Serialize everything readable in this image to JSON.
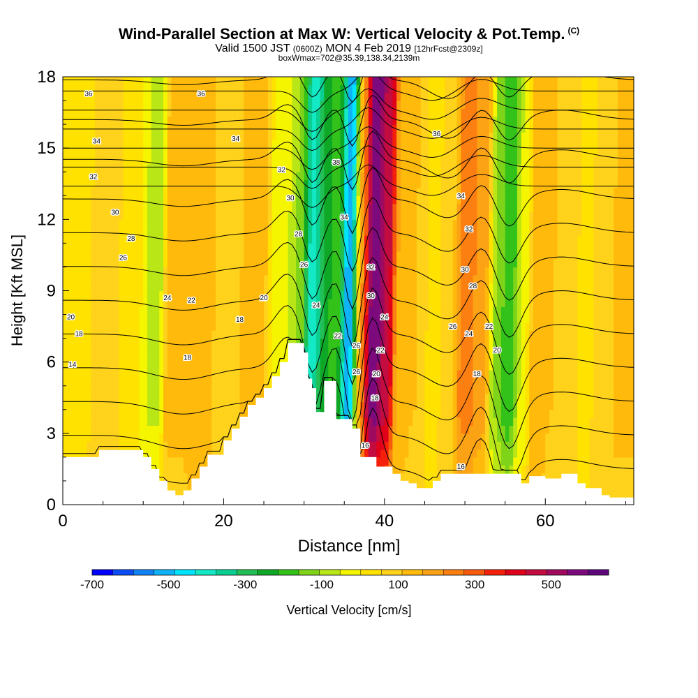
{
  "title": {
    "main": "Wind-Parallel Section at Max W: Vertical Velocity & Pot.Temp.",
    "copyright": "(C)",
    "valid_a": "Valid 1500 JST",
    "valid_zone": "(0600Z)",
    "valid_b": "MON 4 Feb 2019",
    "forecast": "[12hrFcst@2309z]",
    "boxinfo": "boxWmax=702@35.39,138.34,2139m"
  },
  "colors": {
    "bins": [
      "#0000ff",
      "#0b4cf4",
      "#0f82f4",
      "#0fb2f7",
      "#00e5ff",
      "#13e9c5",
      "#0bcf91",
      "#21bf55",
      "#0ea826",
      "#33c219",
      "#7fd419",
      "#b8e616",
      "#f5f500",
      "#ffe200",
      "#ffd21b",
      "#ffba0c",
      "#fca215",
      "#fc7f11",
      "#f75a0c",
      "#f4200c",
      "#e0001a",
      "#c30c40",
      "#a00a5e",
      "#7d0a7d",
      "#5d087a"
    ],
    "terrain": "#ffffff",
    "contour": "#000000"
  },
  "chart_data": {
    "type": "heatmap",
    "xlabel": "Distance [nm]",
    "ylabel": "Height [Kft MSL]",
    "xlim": [
      0,
      71
    ],
    "ylim": [
      0,
      18
    ],
    "xticks": [
      0,
      20,
      40,
      60
    ],
    "yticks": [
      0,
      3,
      6,
      9,
      12,
      15,
      18
    ],
    "colorbar": {
      "label": "Vertical Velocity [cm/s]",
      "min": -700,
      "max": 650,
      "step": 50,
      "tick_values": [
        -700,
        -500,
        -300,
        -100,
        100,
        300,
        500
      ]
    },
    "vertical_velocity_features": [
      {
        "x": 2,
        "w": -15
      },
      {
        "x": 5,
        "w": 30
      },
      {
        "x": 9,
        "w": -40
      },
      {
        "x": 11,
        "w": -110
      },
      {
        "x": 14,
        "w": 70
      },
      {
        "x": 17,
        "w": 90
      },
      {
        "x": 20,
        "w": 40
      },
      {
        "x": 24,
        "w": 55
      },
      {
        "x": 27,
        "w": -60
      },
      {
        "x": 29,
        "w": -150
      },
      {
        "x": 31,
        "w": -420
      },
      {
        "x": 32.5,
        "w": -280
      },
      {
        "x": 34,
        "w": -200
      },
      {
        "x": 35.5,
        "w": -600
      },
      {
        "x": 37,
        "w": 150
      },
      {
        "x": 38.5,
        "w": 520
      },
      {
        "x": 40,
        "w": 380
      },
      {
        "x": 42,
        "w": 80
      },
      {
        "x": 44,
        "w": 50
      },
      {
        "x": 46,
        "w": -20
      },
      {
        "x": 48,
        "w": 40
      },
      {
        "x": 50,
        "w": 180
      },
      {
        "x": 52,
        "w": 130
      },
      {
        "x": 54,
        "w": -160
      },
      {
        "x": 55.5,
        "w": -260
      },
      {
        "x": 57,
        "w": -80
      },
      {
        "x": 59,
        "w": 100
      },
      {
        "x": 61,
        "w": 50
      },
      {
        "x": 63,
        "w": 20
      },
      {
        "x": 65,
        "w": -20
      },
      {
        "x": 67,
        "w": 40
      },
      {
        "x": 70,
        "w": 70
      }
    ],
    "potential_temperature_contours": {
      "unit": "C",
      "levels": [
        14,
        16,
        18,
        20,
        22,
        24,
        26,
        28,
        30,
        32,
        34,
        36
      ],
      "labels": [
        {
          "text": "36",
          "x": 3.2,
          "y": 17.3
        },
        {
          "text": "36",
          "x": 17.2,
          "y": 17.3
        },
        {
          "text": "34",
          "x": 4.2,
          "y": 15.3
        },
        {
          "text": "34",
          "x": 21.5,
          "y": 15.4
        },
        {
          "text": "32",
          "x": 3.8,
          "y": 13.8
        },
        {
          "text": "32",
          "x": 27.2,
          "y": 14.1
        },
        {
          "text": "30",
          "x": 6.5,
          "y": 12.3
        },
        {
          "text": "30",
          "x": 28.3,
          "y": 12.9
        },
        {
          "text": "28",
          "x": 8.5,
          "y": 11.2
        },
        {
          "text": "28",
          "x": 29.3,
          "y": 11.4
        },
        {
          "text": "26",
          "x": 7.5,
          "y": 10.4
        },
        {
          "text": "26",
          "x": 30.0,
          "y": 10.1
        },
        {
          "text": "24",
          "x": 13.0,
          "y": 8.7
        },
        {
          "text": "24",
          "x": 31.5,
          "y": 8.4
        },
        {
          "text": "22",
          "x": 16.0,
          "y": 8.6
        },
        {
          "text": "22",
          "x": 34.2,
          "y": 7.1
        },
        {
          "text": "20",
          "x": 25.0,
          "y": 8.7
        },
        {
          "text": "20",
          "x": 1.0,
          "y": 7.9
        },
        {
          "text": "18",
          "x": 22.0,
          "y": 7.8
        },
        {
          "text": "18",
          "x": 2.0,
          "y": 7.2
        },
        {
          "text": "18",
          "x": 15.5,
          "y": 6.2
        },
        {
          "text": "14",
          "x": 1.2,
          "y": 5.9
        },
        {
          "text": "38",
          "x": 34.0,
          "y": 14.4
        },
        {
          "text": "34",
          "x": 35.0,
          "y": 12.1
        },
        {
          "text": "32",
          "x": 38.3,
          "y": 10.0
        },
        {
          "text": "30",
          "x": 38.3,
          "y": 8.8
        },
        {
          "text": "24",
          "x": 40.0,
          "y": 7.9
        },
        {
          "text": "26",
          "x": 36.5,
          "y": 6.7
        },
        {
          "text": "22",
          "x": 39.5,
          "y": 6.5
        },
        {
          "text": "26",
          "x": 36.5,
          "y": 5.6
        },
        {
          "text": "20",
          "x": 39.0,
          "y": 5.5
        },
        {
          "text": "18",
          "x": 38.8,
          "y": 4.5
        },
        {
          "text": "16",
          "x": 37.6,
          "y": 2.5
        },
        {
          "text": "36",
          "x": 46.5,
          "y": 15.6
        },
        {
          "text": "34",
          "x": 49.5,
          "y": 13.0
        },
        {
          "text": "32",
          "x": 50.5,
          "y": 11.6
        },
        {
          "text": "30",
          "x": 50.0,
          "y": 9.9
        },
        {
          "text": "28",
          "x": 51.0,
          "y": 9.2
        },
        {
          "text": "26",
          "x": 48.5,
          "y": 7.5
        },
        {
          "text": "24",
          "x": 50.5,
          "y": 7.2
        },
        {
          "text": "22",
          "x": 53.0,
          "y": 7.5
        },
        {
          "text": "20",
          "x": 54.0,
          "y": 6.5
        },
        {
          "text": "18",
          "x": 51.5,
          "y": 5.5
        },
        {
          "text": "16",
          "x": 49.5,
          "y": 1.6
        }
      ]
    },
    "terrain_profile": {
      "unit": "Kft MSL",
      "x": [
        0,
        4.5,
        4.5,
        10,
        10,
        11,
        11,
        12,
        12,
        13,
        13,
        14,
        14,
        15,
        15,
        16,
        16,
        17,
        17,
        18,
        18,
        20,
        20,
        21,
        21,
        22,
        22,
        23,
        23,
        24,
        24,
        25,
        25,
        26,
        26,
        27,
        27,
        28,
        28,
        30,
        30,
        30.5,
        30.5,
        31,
        31,
        31.5,
        31.5,
        32.5,
        32.5,
        33.5,
        33.5,
        34,
        34,
        36,
        36,
        37,
        37,
        39,
        39,
        41,
        41,
        42,
        42,
        43,
        43,
        44,
        44,
        46,
        46,
        47,
        47,
        57,
        57,
        58,
        58,
        60,
        60,
        62,
        62,
        64,
        64,
        65,
        65,
        67,
        67,
        68,
        68,
        71
      ],
      "y": [
        2.0,
        2.0,
        2.3,
        2.3,
        2.0,
        2.0,
        1.5,
        1.5,
        1.0,
        1.0,
        0.6,
        0.6,
        0.4,
        0.4,
        0.6,
        0.6,
        1.1,
        1.1,
        1.6,
        1.6,
        2.1,
        2.1,
        2.7,
        2.7,
        3.2,
        3.2,
        3.7,
        3.7,
        4.2,
        4.2,
        4.5,
        4.5,
        4.9,
        4.9,
        5.4,
        5.4,
        6.0,
        6.0,
        6.8,
        6.8,
        6.4,
        6.4,
        5.3,
        5.3,
        4.9,
        4.9,
        3.9,
        3.9,
        5.2,
        5.2,
        5.2,
        5.2,
        3.6,
        3.6,
        3.2,
        3.2,
        2.0,
        2.0,
        1.6,
        1.6,
        1.3,
        1.3,
        1.0,
        1.0,
        0.9,
        0.9,
        0.7,
        0.7,
        1.0,
        1.0,
        1.3,
        1.3,
        0.9,
        0.9,
        1.2,
        1.2,
        1.1,
        1.1,
        1.3,
        1.3,
        0.9,
        0.9,
        0.7,
        0.7,
        0.4,
        0.4,
        0.3,
        0.3
      ]
    }
  }
}
